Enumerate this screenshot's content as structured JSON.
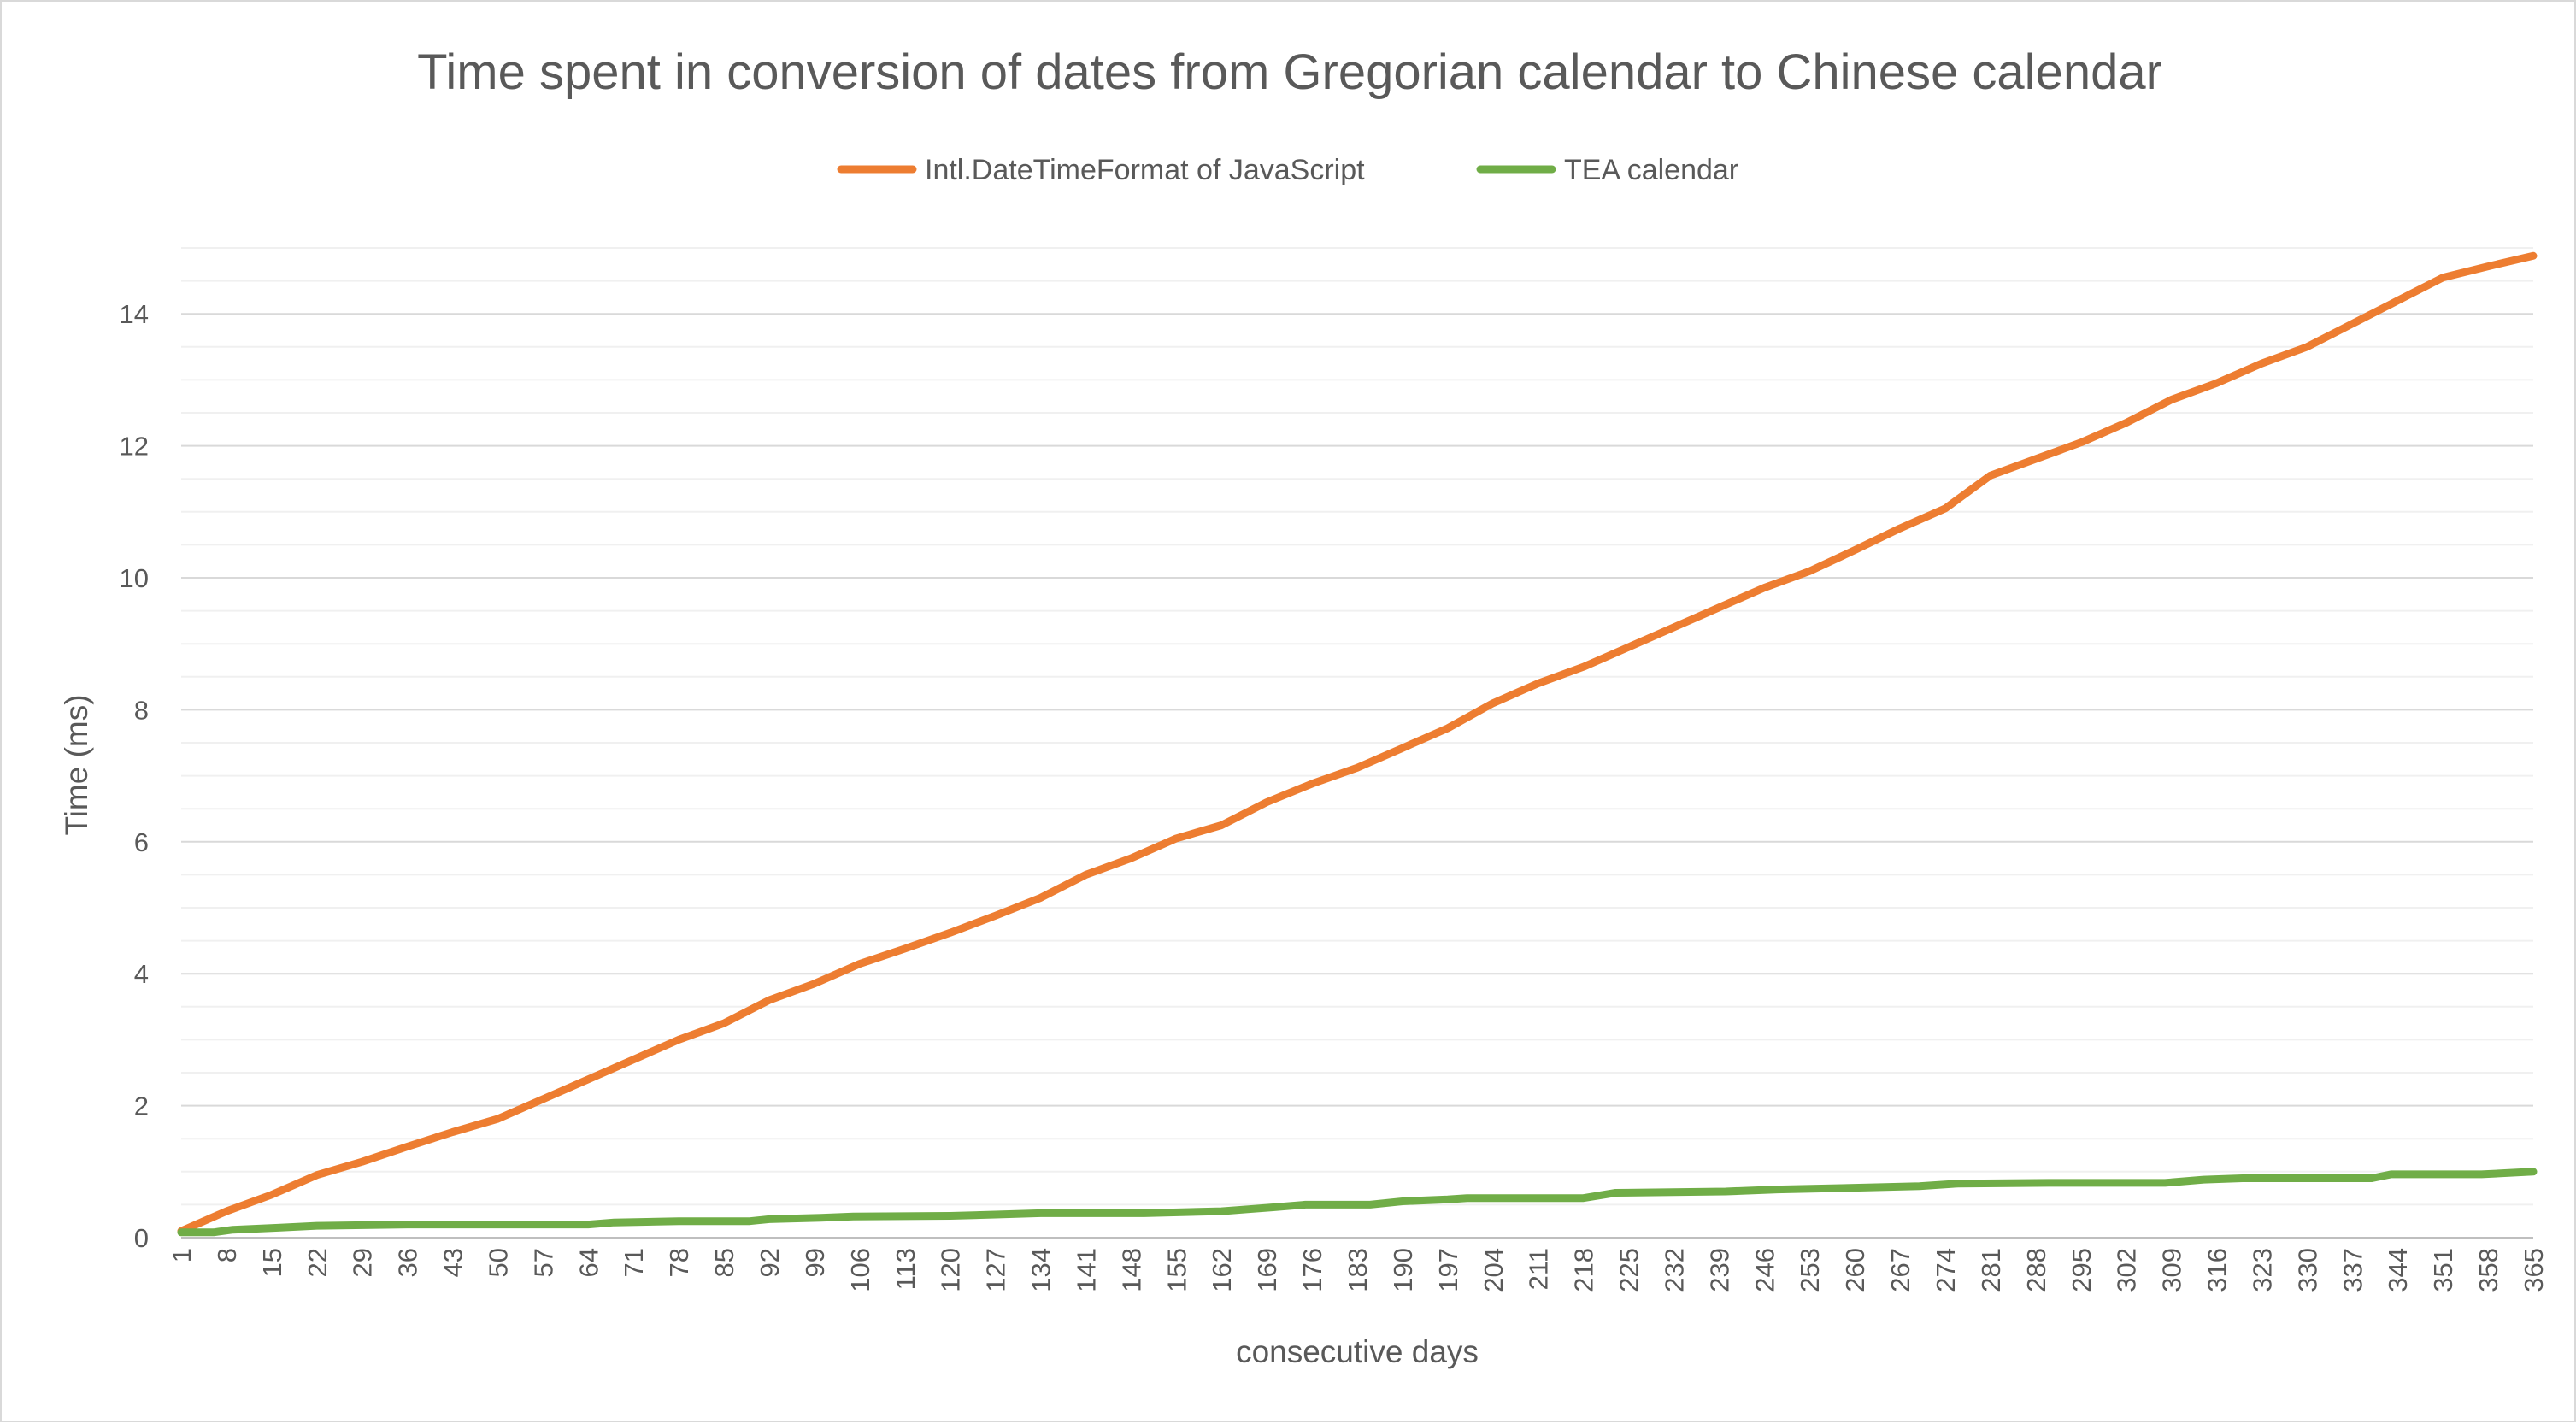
{
  "chart_data": {
    "type": "line",
    "title": "Time spent in conversion of dates from  Gregorian calendar to Chinese calendar",
    "xlabel": "consecutive days",
    "ylabel": "Time (ms)",
    "x_range": [
      1,
      365
    ],
    "x_tick_step": 7,
    "ylim": [
      0,
      15
    ],
    "y_major_step": 2,
    "y_minor_step": 0.5,
    "y_ticks": [
      "0",
      "2",
      "4",
      "6",
      "8",
      "10",
      "12",
      "14"
    ],
    "grid": true,
    "legend_position": "top-center",
    "series": [
      {
        "name": "Intl.DateTimeFormat of JavaScript",
        "color": "#ed7d31",
        "x": [
          1,
          8,
          15,
          22,
          29,
          36,
          43,
          50,
          57,
          64,
          71,
          78,
          85,
          92,
          99,
          106,
          113,
          120,
          127,
          134,
          141,
          148,
          155,
          162,
          169,
          176,
          183,
          190,
          197,
          204,
          211,
          218,
          225,
          232,
          239,
          246,
          253,
          260,
          267,
          274,
          281,
          288,
          295,
          302,
          309,
          316,
          323,
          330,
          337,
          344,
          351,
          358,
          365
        ],
        "y": [
          0.1,
          0.4,
          0.65,
          0.95,
          1.15,
          1.38,
          1.6,
          1.8,
          2.1,
          2.4,
          2.7,
          3.0,
          3.25,
          3.6,
          3.85,
          4.15,
          4.38,
          4.62,
          4.88,
          5.15,
          5.5,
          5.75,
          6.05,
          6.25,
          6.6,
          6.88,
          7.12,
          7.42,
          7.72,
          8.1,
          8.4,
          8.65,
          8.95,
          9.25,
          9.55,
          9.85,
          10.1,
          10.42,
          10.75,
          11.05,
          11.55,
          11.8,
          12.05,
          12.35,
          12.7,
          12.95,
          13.25,
          13.5,
          13.85,
          14.2,
          14.55,
          14.72,
          14.88
        ]
      },
      {
        "name": "TEA calendar",
        "color": "#70ad47",
        "x": [
          1,
          6,
          9,
          16,
          22,
          36,
          50,
          64,
          68,
          78,
          89,
          92,
          100,
          105,
          120,
          127,
          134,
          150,
          162,
          166,
          170,
          175,
          185,
          190,
          197,
          200,
          218,
          223,
          240,
          248,
          262,
          270,
          276,
          290,
          308,
          314,
          320,
          340,
          343,
          357,
          365
        ],
        "y": [
          0.08,
          0.08,
          0.12,
          0.15,
          0.18,
          0.2,
          0.2,
          0.2,
          0.23,
          0.25,
          0.25,
          0.28,
          0.3,
          0.32,
          0.33,
          0.35,
          0.37,
          0.37,
          0.4,
          0.43,
          0.46,
          0.5,
          0.5,
          0.55,
          0.58,
          0.6,
          0.6,
          0.68,
          0.7,
          0.73,
          0.76,
          0.78,
          0.82,
          0.83,
          0.83,
          0.88,
          0.9,
          0.9,
          0.96,
          0.96,
          1.0
        ]
      }
    ]
  }
}
